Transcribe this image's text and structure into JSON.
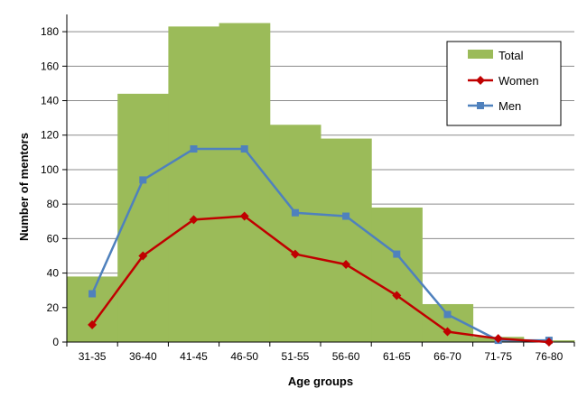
{
  "chart_data": {
    "type": "bar",
    "categories": [
      "31-35",
      "36-40",
      "41-45",
      "46-50",
      "51-55",
      "56-60",
      "61-65",
      "66-70",
      "71-75",
      "76-80"
    ],
    "series": [
      {
        "name": "Total",
        "kind": "bar",
        "color": "#9BBB59",
        "values": [
          38,
          144,
          183,
          185,
          126,
          118,
          78,
          22,
          3,
          1
        ]
      },
      {
        "name": "Women",
        "kind": "line",
        "marker": "diamond",
        "color": "#C00000",
        "values": [
          10,
          50,
          71,
          73,
          51,
          45,
          27,
          6,
          2,
          0
        ]
      },
      {
        "name": "Men",
        "kind": "line",
        "marker": "square",
        "color": "#4F81BD",
        "values": [
          28,
          94,
          112,
          112,
          75,
          73,
          51,
          16,
          1,
          1
        ]
      }
    ],
    "xlabel": "Age groups",
    "ylabel": "Number of mentors",
    "ylim": [
      0,
      190
    ],
    "yticks": [
      0,
      20,
      40,
      60,
      80,
      100,
      120,
      140,
      160,
      180
    ],
    "grid": true,
    "legend_position": "top-right"
  }
}
